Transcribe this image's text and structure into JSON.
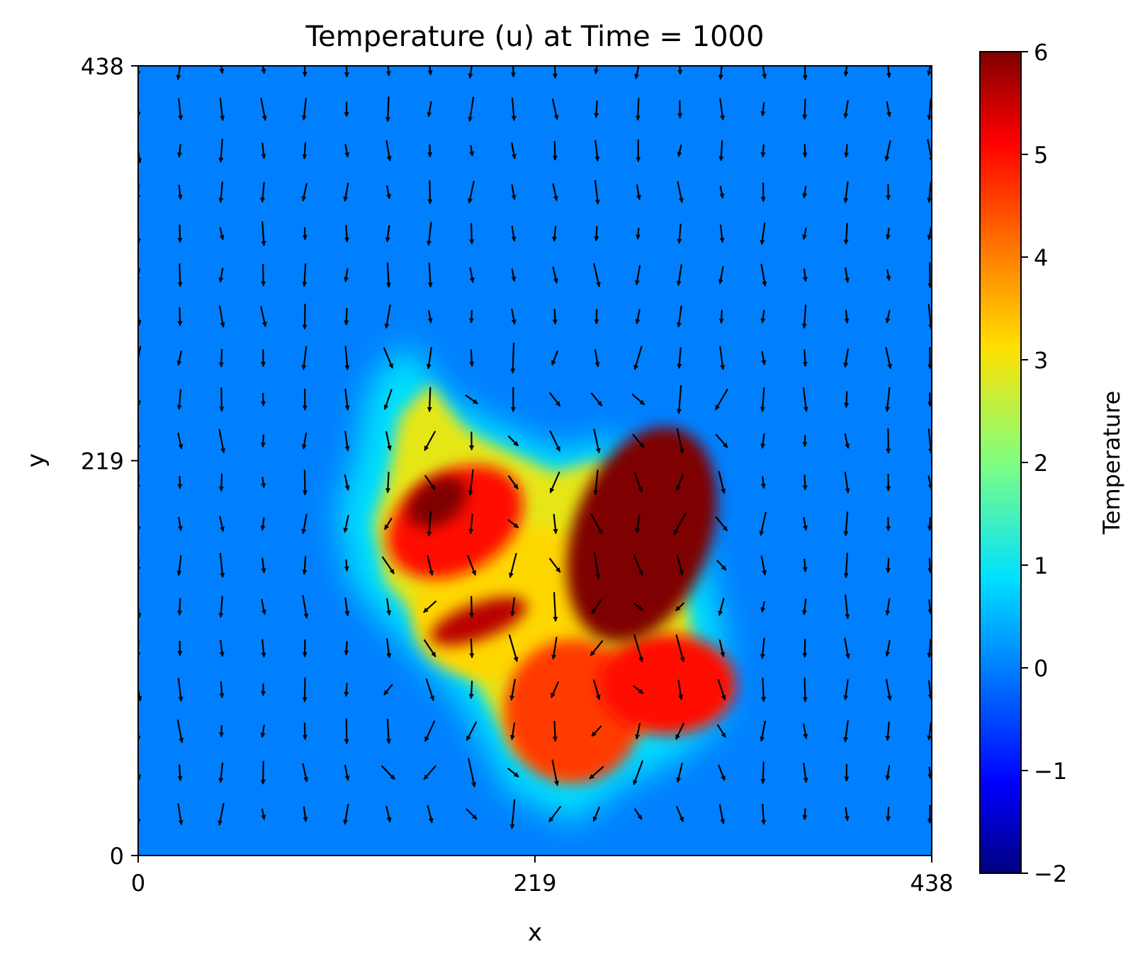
{
  "chart_data": {
    "type": "heatmap",
    "title": "Temperature (u) at Time = 1000",
    "xlabel": "x",
    "ylabel": "y",
    "xlim": [
      0,
      438
    ],
    "ylim": [
      0,
      438
    ],
    "xticks": [
      "0",
      "219",
      "438"
    ],
    "yticks": [
      "0",
      "219",
      "438"
    ],
    "colorbar": {
      "label": "Temperature",
      "range": [
        -2,
        6
      ],
      "ticks": [
        "6",
        "5",
        "4",
        "3",
        "2",
        "1",
        "0",
        "−1",
        "−2"
      ],
      "colormap": "jet"
    },
    "background_value": 0,
    "colors": {
      "background_field": "#0080ff",
      "arrow": "#000000"
    },
    "hot_regions": [
      {
        "name": "left lobe core",
        "cx": 165,
        "cy": 196,
        "rx": 18,
        "ry": 12,
        "angle": -35,
        "value": 6.0
      },
      {
        "name": "left lobe",
        "cx": 175,
        "cy": 185,
        "rx": 40,
        "ry": 28,
        "angle": -30,
        "value": 5.0
      },
      {
        "name": "left lower band",
        "cx": 188,
        "cy": 130,
        "rx": 28,
        "ry": 10,
        "angle": -20,
        "value": 5.6
      },
      {
        "name": "right lobe core",
        "cx": 278,
        "cy": 178,
        "rx": 38,
        "ry": 62,
        "angle": 20,
        "value": 6.0
      },
      {
        "name": "bottom right",
        "cx": 292,
        "cy": 95,
        "rx": 38,
        "ry": 28,
        "angle": 0,
        "value": 5.0
      },
      {
        "name": "bottom center",
        "cx": 240,
        "cy": 80,
        "rx": 38,
        "ry": 40,
        "angle": 0,
        "value": 4.6
      },
      {
        "name": "center column",
        "cx": 205,
        "cy": 140,
        "rx": 55,
        "ry": 40,
        "angle": -20,
        "value": 3.2
      }
    ],
    "plume_region": [
      [
        120,
        220
      ],
      [
        128,
        262
      ],
      [
        148,
        284
      ],
      [
        168,
        258
      ],
      [
        180,
        248
      ],
      [
        232,
        224
      ],
      [
        262,
        232
      ],
      [
        288,
        210
      ],
      [
        312,
        168
      ],
      [
        324,
        120
      ],
      [
        322,
        75
      ],
      [
        300,
        55
      ],
      [
        270,
        40
      ],
      [
        240,
        18
      ],
      [
        205,
        35
      ],
      [
        178,
        85
      ],
      [
        140,
        125
      ],
      [
        118,
        150
      ],
      [
        110,
        190
      ]
    ],
    "quiver": {
      "grid_x": [
        0,
        23,
        46,
        69,
        92,
        115,
        138,
        161,
        184,
        207,
        230,
        253,
        276,
        299,
        322,
        345,
        368,
        391,
        414,
        437
      ],
      "grid_y": [
        23,
        46,
        69,
        92,
        115,
        138,
        161,
        184,
        207,
        230,
        253,
        276,
        299,
        322,
        345,
        368,
        391,
        414,
        437
      ],
      "note": "velocity field shown as black arrows, predominantly pointing downward with local swirls around the hot plume"
    }
  }
}
